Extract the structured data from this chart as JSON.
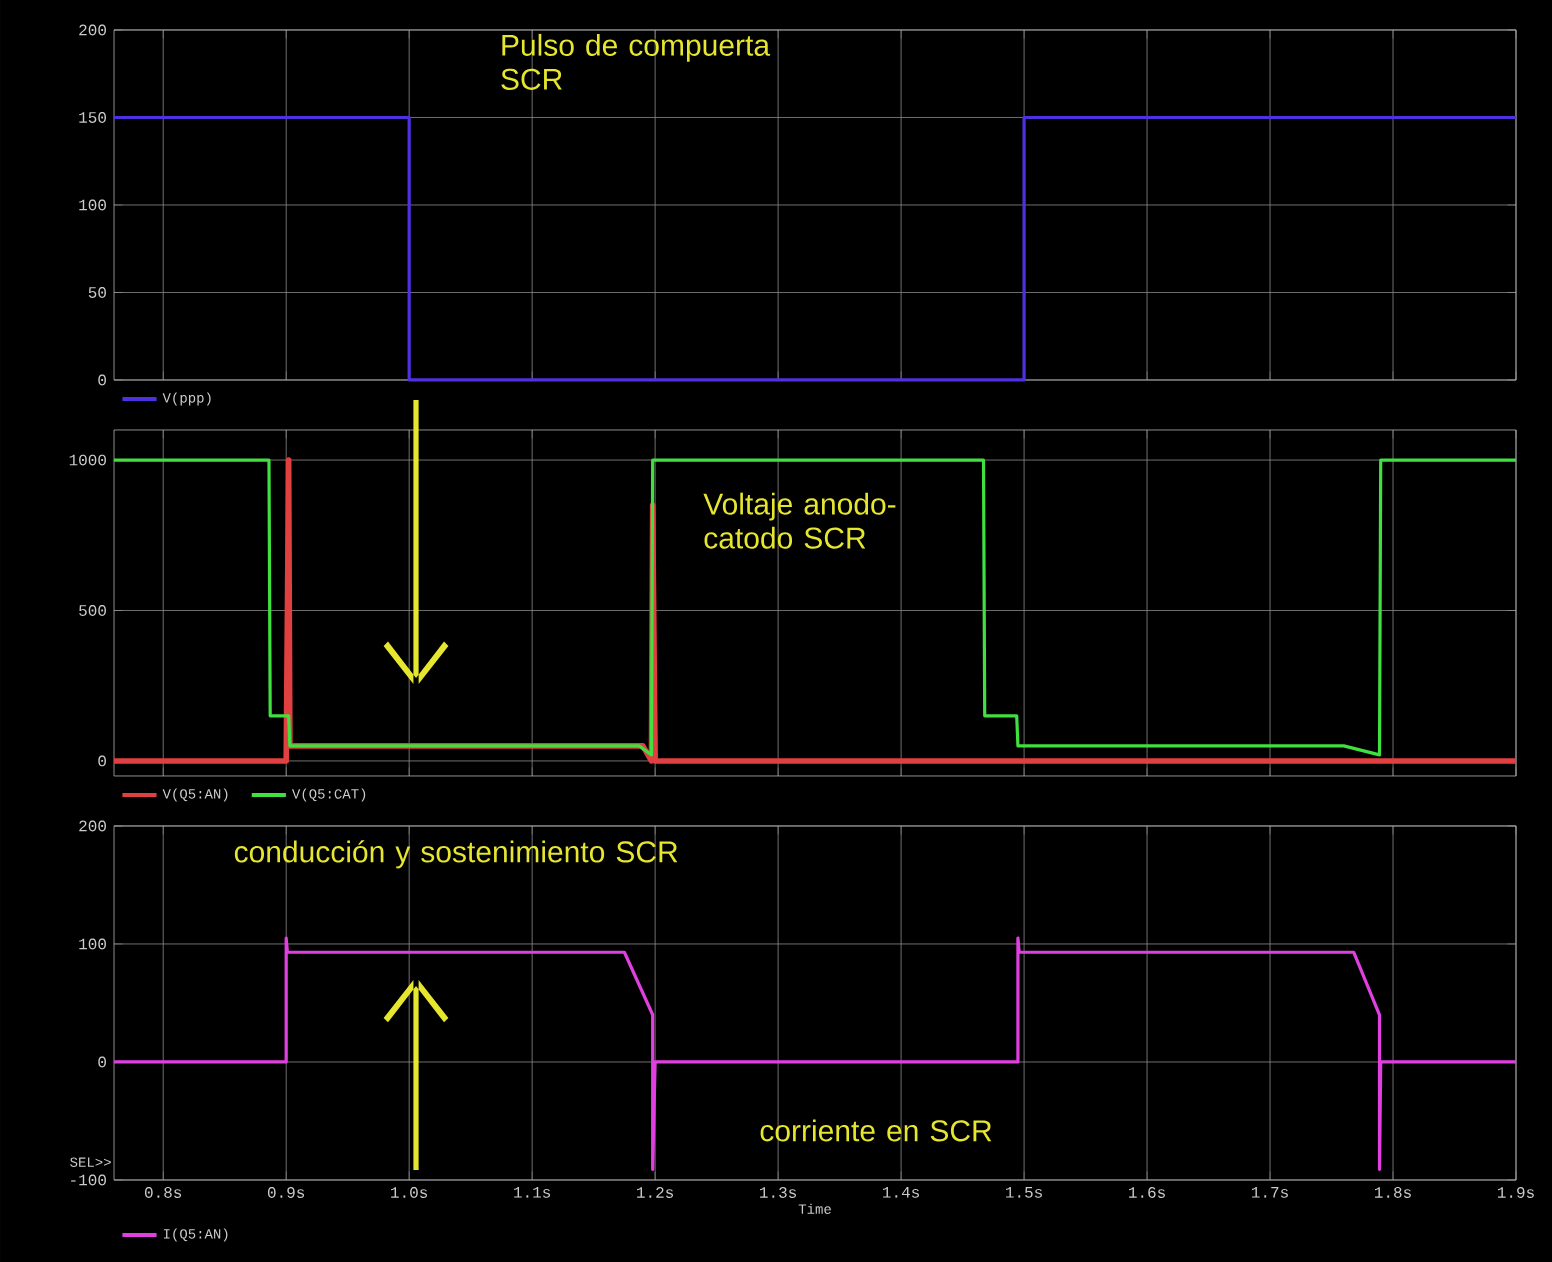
{
  "chart_data": [
    {
      "type": "line",
      "xlim": [
        0.76,
        1.9
      ],
      "xticks": [
        0.8,
        0.9,
        1.0,
        1.1,
        1.2,
        1.3,
        1.4,
        1.5,
        1.6,
        1.7,
        1.8,
        1.9
      ],
      "ylim": [
        0,
        200
      ],
      "yticks": [
        0,
        50,
        100,
        150,
        200
      ],
      "tick_labels": "y",
      "grid": true,
      "legend": "bottom left",
      "series": [
        {
          "name": "V(ppp)",
          "color": "#5030e0",
          "x": [
            0.76,
            1.0,
            1.0,
            1.5,
            1.5,
            1.9
          ],
          "values": [
            150,
            150,
            0,
            0,
            150,
            150
          ]
        }
      ],
      "annotations": [
        "Pulso de compuerta SCR"
      ]
    },
    {
      "type": "line",
      "xlim": [
        0.76,
        1.9
      ],
      "xticks": [
        0.8,
        0.9,
        1.0,
        1.1,
        1.2,
        1.3,
        1.4,
        1.5,
        1.6,
        1.7,
        1.8,
        1.9
      ],
      "ylim": [
        -50,
        1100
      ],
      "yticks": [
        0,
        500,
        1000
      ],
      "tick_labels": "y",
      "grid": true,
      "legend": "bottom left",
      "series": [
        {
          "name": "V(Q5:AN)",
          "color": "#e04040",
          "x": [
            0.76,
            0.9,
            0.902,
            0.903,
            1.19,
            1.197,
            1.198,
            1.2,
            1.9
          ],
          "values": [
            0,
            0,
            1000,
            50,
            50,
            0,
            850,
            0,
            0
          ]
        },
        {
          "name": "V(Q5:CAT)",
          "color": "#40e040",
          "x": [
            0.76,
            0.886,
            0.887,
            0.902,
            0.903,
            1.187,
            1.197,
            1.198,
            1.467,
            1.468,
            1.494,
            1.495,
            1.76,
            1.789,
            1.79,
            1.9
          ],
          "values": [
            1000,
            1000,
            150,
            150,
            50,
            50,
            20,
            1000,
            1000,
            150,
            150,
            50,
            50,
            20,
            1000,
            1000
          ]
        }
      ],
      "annotations": [
        "Voltaje anodo-catodo SCR"
      ]
    },
    {
      "type": "line",
      "xlim": [
        0.76,
        1.9
      ],
      "xticks": [
        {
          "value": 0.8,
          "label": "0.8s"
        },
        {
          "value": 0.9,
          "label": "0.9s"
        },
        {
          "value": 1.0,
          "label": "1.0s"
        },
        {
          "value": 1.1,
          "label": "1.1s"
        },
        {
          "value": 1.2,
          "label": "1.2s"
        },
        {
          "value": 1.3,
          "label": "1.3s"
        },
        {
          "value": 1.4,
          "label": "1.4s"
        },
        {
          "value": 1.5,
          "label": "1.5s"
        },
        {
          "value": 1.6,
          "label": "1.6s"
        },
        {
          "value": 1.7,
          "label": "1.7s"
        },
        {
          "value": 1.8,
          "label": "1.8s"
        },
        {
          "value": 1.9,
          "label": "1.9s"
        }
      ],
      "ylim": [
        -100,
        200
      ],
      "yticks": [
        -100,
        0,
        100,
        200
      ],
      "xlabel": "Time",
      "grid": true,
      "legend": "bottom left",
      "series": [
        {
          "name": "I(Q5:AN)",
          "color": "#e040e0",
          "x": [
            0.76,
            0.9,
            0.9,
            0.901,
            1.175,
            1.198,
            1.198,
            1.2,
            1.495,
            1.495,
            1.496,
            1.768,
            1.789,
            1.789,
            1.79,
            1.9
          ],
          "values": [
            0,
            0,
            105,
            93,
            93,
            40,
            -91,
            0,
            0,
            105,
            93,
            93,
            40,
            -91,
            0,
            0
          ]
        }
      ],
      "annotations": [
        "conducción y sostenimiento SCR",
        "corriente en SCR",
        "SEL>>"
      ]
    }
  ]
}
